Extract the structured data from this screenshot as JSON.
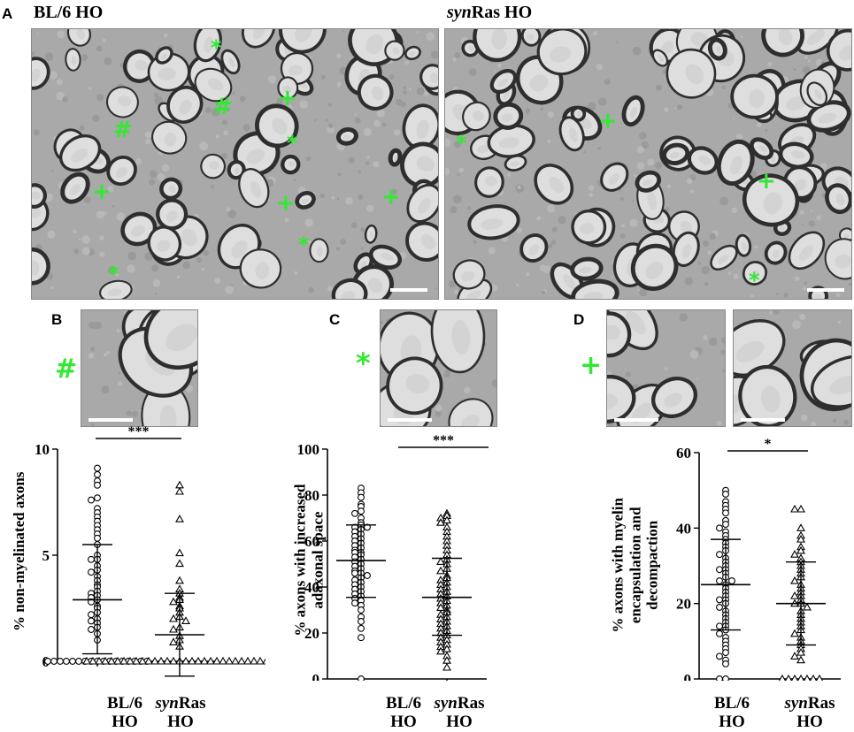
{
  "panels": {
    "A": {
      "label": "A",
      "left_title": "BL/6 HO",
      "right_title_italic": "syn",
      "right_title_rest": "Ras HO"
    },
    "B": {
      "label": "B",
      "symbol": "#"
    },
    "C": {
      "label": "C",
      "symbol": "*"
    },
    "D": {
      "label": "D",
      "symbol": "+"
    }
  },
  "em_markers": {
    "left": [
      "*",
      "#",
      "#",
      "+",
      "*",
      "+",
      "+",
      "+",
      "*",
      "*"
    ],
    "right": [
      "*",
      "+",
      "+",
      "*"
    ]
  },
  "chart_data": [
    {
      "type": "scatter",
      "ylabel": "% non-myelinated axons",
      "ylim": [
        0,
        10
      ],
      "yticks": [
        "0",
        "5",
        "10"
      ],
      "categories": [
        {
          "main": "BL/6",
          "sub": "HO"
        },
        {
          "italic": "syn",
          "rest": "Ras",
          "sub": "HO"
        }
      ],
      "significance": "***",
      "series": [
        {
          "marker": "circle",
          "mean": 2.9,
          "sd_upper": 5.5,
          "sd_lower": 0.35,
          "values": [
            9.1,
            8.8,
            8.5,
            8.3,
            7.7,
            7.6,
            7.2,
            7.0,
            6.8,
            6.6,
            6.4,
            6.2,
            6.0,
            5.8,
            5.5,
            5.0,
            4.8,
            4.8,
            4.5,
            4.3,
            4.2,
            4.0,
            3.8,
            3.6,
            3.5,
            3.3,
            3.2,
            3.1,
            3.0,
            2.9,
            2.8,
            2.6,
            2.5,
            2.3,
            2.2,
            2.0,
            1.9,
            1.8,
            1.6,
            1.5,
            1.3,
            1.0,
            0,
            0,
            0,
            0,
            0,
            0,
            0,
            0,
            0,
            0,
            0,
            0,
            0,
            0,
            0,
            0,
            0
          ]
        },
        {
          "marker": "triangle",
          "mean": 1.25,
          "sd_upper": 3.2,
          "sd_lower": -0.7,
          "values": [
            8.3,
            8.0,
            6.7,
            5.1,
            4.6,
            3.8,
            3.4,
            3.2,
            3.0,
            2.9,
            2.8,
            2.6,
            2.5,
            2.3,
            2.1,
            2.0,
            1.9,
            1.6,
            1.5,
            1.2,
            1.0,
            0.9,
            0.7,
            0,
            0,
            0,
            0,
            0,
            0,
            0,
            0,
            0,
            0,
            0,
            0,
            0,
            0,
            0,
            0,
            0,
            0,
            0,
            0,
            0,
            0,
            0,
            0,
            0,
            0,
            0,
            0,
            0,
            0,
            0
          ]
        }
      ]
    },
    {
      "type": "scatter",
      "ylabel": "% axons with increased adaxonal space",
      "ylim": [
        0,
        100
      ],
      "yticks": [
        "0",
        "20",
        "40",
        "60",
        "80",
        "100"
      ],
      "categories": [
        {
          "main": "BL/6",
          "sub": "HO"
        },
        {
          "italic": "syn",
          "rest": "Ras",
          "sub": "HO"
        }
      ],
      "significance": "***",
      "series": [
        {
          "marker": "circle",
          "mean": 51.5,
          "sd_upper": 67,
          "sd_lower": 35.5,
          "values": [
            83,
            81,
            79,
            76,
            75,
            73,
            72,
            70,
            68,
            67,
            66,
            66,
            65,
            64,
            63,
            62,
            61,
            60,
            59,
            58,
            57,
            56,
            55,
            55,
            54,
            53,
            52,
            51,
            50,
            49,
            48,
            47,
            46,
            46,
            45,
            44,
            43,
            42,
            41,
            40,
            39,
            38,
            37,
            36,
            35,
            34,
            33,
            32,
            30,
            27,
            25,
            22,
            18,
            0
          ]
        },
        {
          "marker": "triangle",
          "mean": 35.5,
          "sd_upper": 52.5,
          "sd_lower": 19,
          "values": [
            72,
            71,
            70,
            69,
            68,
            66,
            64,
            62,
            60,
            58,
            56,
            54,
            52,
            51,
            50,
            48,
            47,
            45,
            44,
            43,
            42,
            41,
            40,
            39,
            38,
            37,
            36,
            35,
            34,
            33,
            32,
            31,
            30,
            29,
            28,
            27,
            26,
            25,
            24,
            23,
            22,
            21,
            20,
            19,
            18,
            17,
            16,
            15,
            14,
            13,
            12,
            10,
            8,
            5
          ]
        }
      ]
    },
    {
      "type": "scatter",
      "ylabel": "% axons with myelin encapsulation and decompaction",
      "ylim": [
        0,
        60
      ],
      "yticks": [
        "0",
        "20",
        "40",
        "60"
      ],
      "categories": [
        {
          "main": "BL/6",
          "sub": "HO"
        },
        {
          "italic": "syn",
          "rest": "Ras",
          "sub": "HO"
        }
      ],
      "significance": "*",
      "series": [
        {
          "marker": "circle",
          "mean": 25,
          "sd_upper": 37,
          "sd_lower": 13,
          "values": [
            50,
            49,
            47,
            46,
            45,
            44,
            42,
            41,
            40,
            39,
            38,
            37,
            36,
            35,
            34,
            33,
            32,
            31,
            30,
            29,
            29,
            28,
            27,
            26,
            26,
            25,
            24,
            23,
            22,
            21,
            21,
            20,
            19,
            18,
            17,
            16,
            15,
            14,
            14,
            13,
            12,
            11,
            10,
            9,
            8,
            7,
            6,
            5,
            4,
            0,
            0
          ]
        },
        {
          "marker": "triangle",
          "mean": 20,
          "sd_upper": 31,
          "sd_lower": 9,
          "values": [
            45,
            45,
            40,
            38,
            37,
            35,
            34,
            33,
            32,
            31,
            30,
            29,
            28,
            27,
            26,
            25,
            24,
            23,
            22,
            22,
            21,
            20,
            20,
            19,
            18,
            17,
            16,
            15,
            14,
            13,
            12,
            11,
            10,
            9,
            8,
            7,
            6,
            5,
            0,
            0,
            0,
            0,
            0,
            0,
            0
          ]
        }
      ]
    }
  ]
}
